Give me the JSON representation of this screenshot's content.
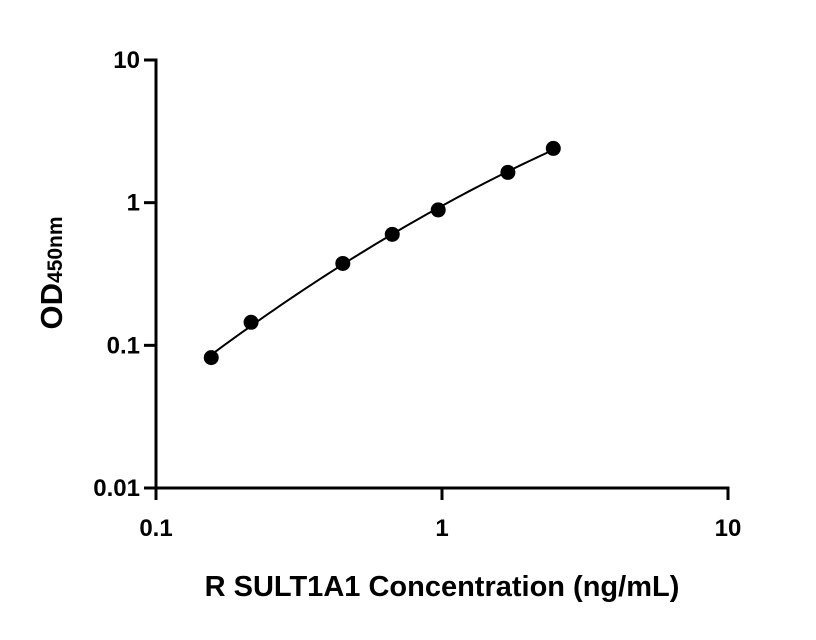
{
  "chart_data": {
    "type": "scatter",
    "x_scale": "log",
    "y_scale": "log",
    "xlim": [
      0.1,
      10
    ],
    "ylim": [
      0.01,
      10
    ],
    "x_ticks": [
      {
        "value": 0.1,
        "label": "0.1"
      },
      {
        "value": 1,
        "label": "1"
      },
      {
        "value": 10,
        "label": "10"
      }
    ],
    "y_ticks": [
      {
        "value": 0.01,
        "label": "0.01"
      },
      {
        "value": 0.1,
        "label": "0.1"
      },
      {
        "value": 1,
        "label": "1"
      },
      {
        "value": 10,
        "label": "10"
      }
    ],
    "xlabel": "R SULT1A1 Concentration (ng/mL)",
    "ylabel": "OD",
    "ylabel_subscript": "450nm",
    "grid": false,
    "legend": "none",
    "has_fit_curve": true,
    "points": [
      {
        "x": 0.156,
        "y": 0.082
      },
      {
        "x": 0.215,
        "y": 0.145
      },
      {
        "x": 0.45,
        "y": 0.375
      },
      {
        "x": 0.67,
        "y": 0.6
      },
      {
        "x": 0.97,
        "y": 0.89
      },
      {
        "x": 1.7,
        "y": 1.63
      },
      {
        "x": 2.45,
        "y": 2.4
      }
    ],
    "colors": {
      "marker": "#000000",
      "curve": "#000000",
      "axes": "#000000"
    }
  }
}
